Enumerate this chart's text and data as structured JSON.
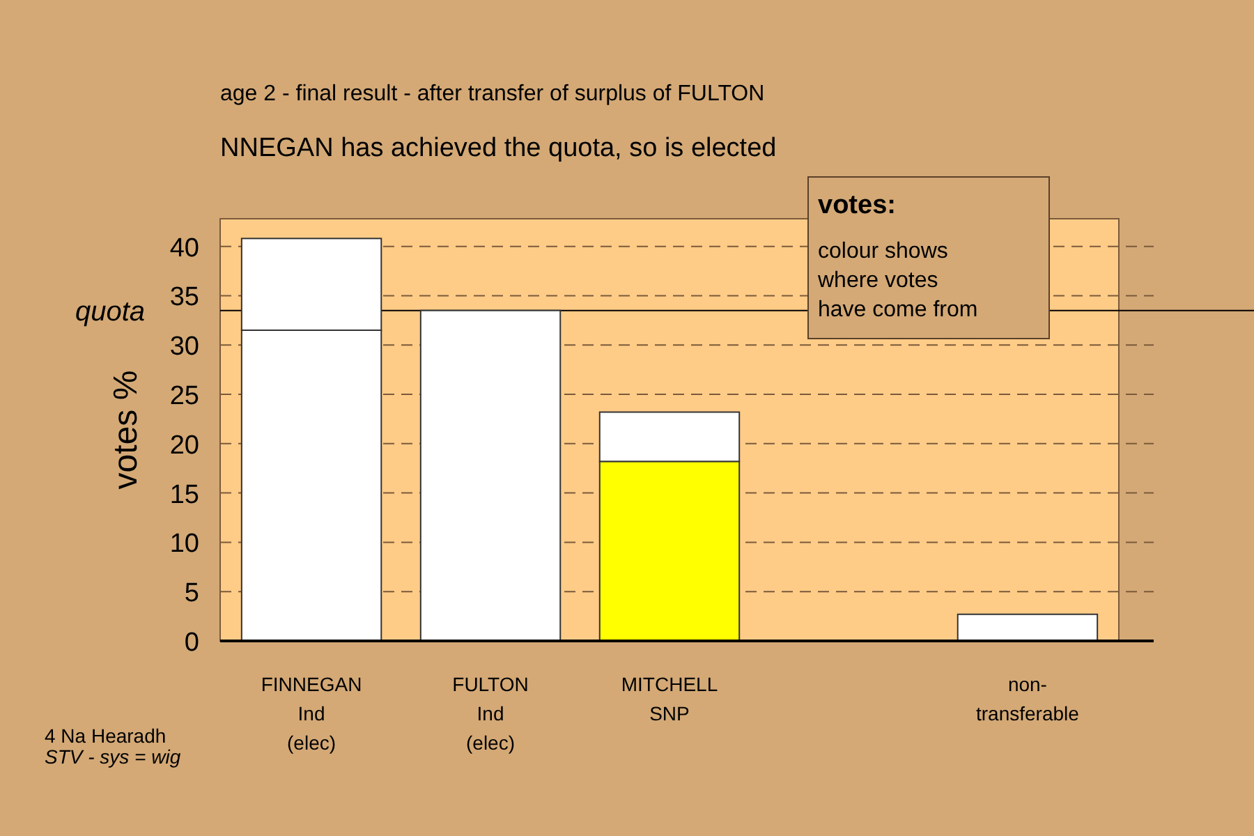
{
  "chart_data": {
    "type": "bar",
    "stacked": true,
    "title": "age 2 - final result - after transfer of surplus of FULTON",
    "subtitle": "NNEGAN has achieved the quota, so is elected",
    "ylabel": "votes %",
    "categories": [
      "FINNEGAN\nInd\n(elec)",
      "FULTON\nInd\n(elec)",
      "MITCHELL\nSNP",
      null,
      "non-\ntransferable"
    ],
    "series": [
      {
        "colors": [
          "#ffffff",
          "#ffffff",
          "#ffff00",
          null,
          "#ffffff"
        ],
        "values": [
          31.5,
          33.5,
          18.2,
          null,
          2.7
        ]
      },
      {
        "colors": [
          "#ffffff",
          null,
          "#ffffff",
          null,
          null
        ],
        "values": [
          9.3,
          null,
          5.0,
          null,
          null
        ]
      }
    ],
    "ylim": [
      0,
      42.8
    ],
    "yticks": [
      0,
      5,
      10,
      15,
      20,
      25,
      30,
      35,
      40
    ],
    "grid": "y",
    "ref_lines": [
      {
        "axis": "y",
        "value": 33.5,
        "label": "quota",
        "color": "#000000"
      }
    ],
    "annotations": [
      "votes:",
      "colour shows\nwhere votes\nhave come from",
      "4 Na Hearadh",
      "STV - sys = wig"
    ]
  }
}
